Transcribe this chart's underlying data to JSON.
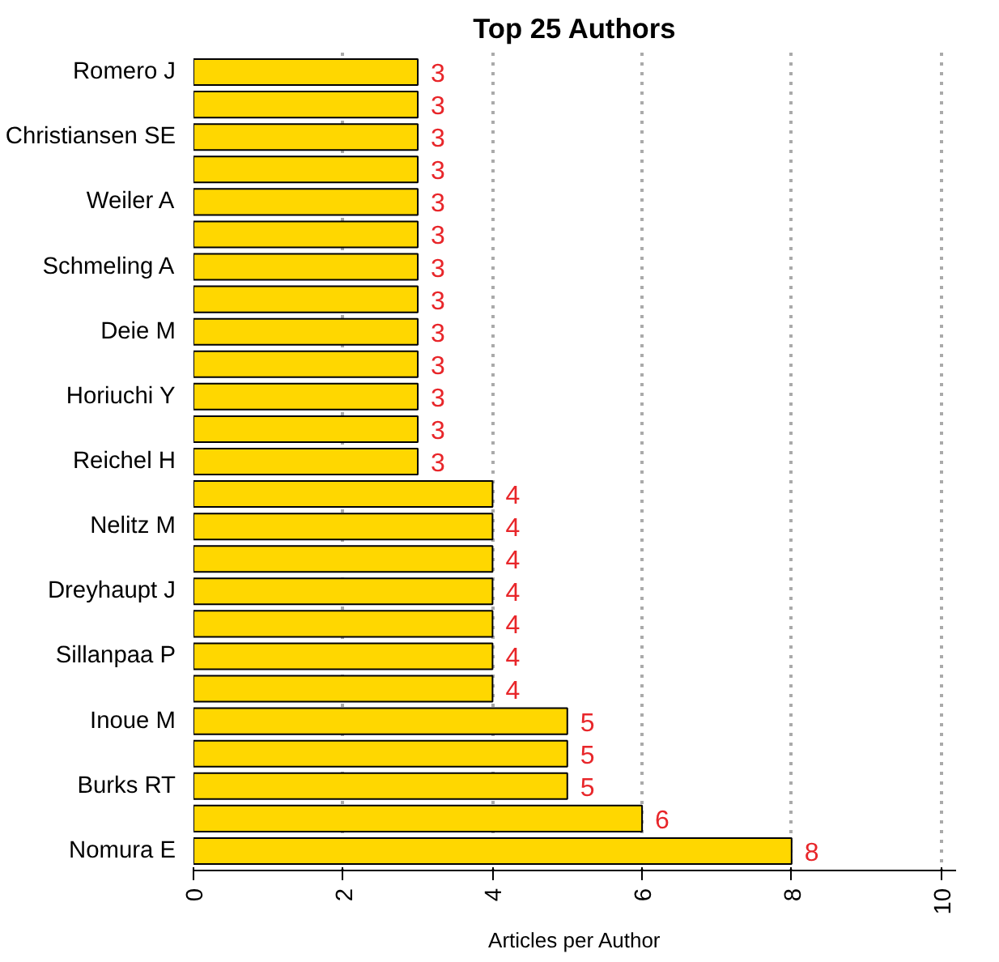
{
  "chart_data": {
    "type": "bar",
    "orientation": "horizontal",
    "title": "Top 25 Authors",
    "xlabel": "Articles per Author",
    "categories": [
      "Romero J",
      null,
      "Christiansen SE",
      null,
      "Weiler A",
      null,
      "Schmeling A",
      null,
      "Deie M",
      null,
      "Horiuchi Y",
      null,
      "Reichel H",
      null,
      "Nelitz M",
      null,
      "Dreyhaupt J",
      null,
      "Sillanpaa P",
      null,
      "Inoue M",
      null,
      "Burks RT",
      null,
      "Nomura E"
    ],
    "values": [
      3,
      3,
      3,
      3,
      3,
      3,
      3,
      3,
      3,
      3,
      3,
      3,
      3,
      4,
      4,
      4,
      4,
      4,
      4,
      4,
      5,
      5,
      5,
      6,
      8
    ],
    "color": "#ffd700",
    "xlim": [
      0,
      10
    ],
    "xticks": [
      0,
      2,
      4,
      6,
      8,
      10
    ],
    "grid": "x",
    "data_labels": true
  }
}
